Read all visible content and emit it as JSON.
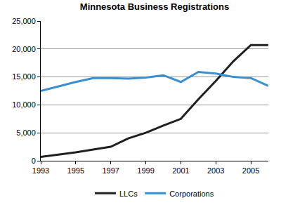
{
  "chart_data": {
    "type": "line",
    "title": "Minnesota Business Registrations",
    "x": [
      1993,
      1994,
      1995,
      1996,
      1997,
      1998,
      1999,
      2000,
      2001,
      2002,
      2003,
      2004,
      2005,
      2006
    ],
    "series": [
      {
        "name": "LLCs",
        "color": "#231f20",
        "values": [
          700,
          1100,
          1500,
          2000,
          2500,
          4000,
          5000,
          6300,
          7500,
          11000,
          14300,
          17800,
          20700,
          20700
        ]
      },
      {
        "name": "Corporations",
        "color": "#3a8fd0",
        "values": [
          12500,
          13300,
          14100,
          14800,
          14800,
          14700,
          14900,
          15300,
          14100,
          15900,
          15600,
          15000,
          14800,
          13400
        ]
      }
    ],
    "xlim": [
      1993,
      2006
    ],
    "xticks": [
      1993,
      1995,
      1997,
      1999,
      2001,
      2003,
      2005
    ],
    "ylim": [
      0,
      25000
    ],
    "yticks": [
      0,
      {
        "value": 5000,
        "label": "5,000"
      },
      {
        "value": 10000,
        "label": "10,000"
      },
      {
        "value": 15000,
        "label": "15,000"
      },
      {
        "value": 20000,
        "label": "20,000"
      },
      {
        "value": 25000,
        "label": "25,000"
      }
    ],
    "grid": true,
    "legend": "bottom"
  }
}
